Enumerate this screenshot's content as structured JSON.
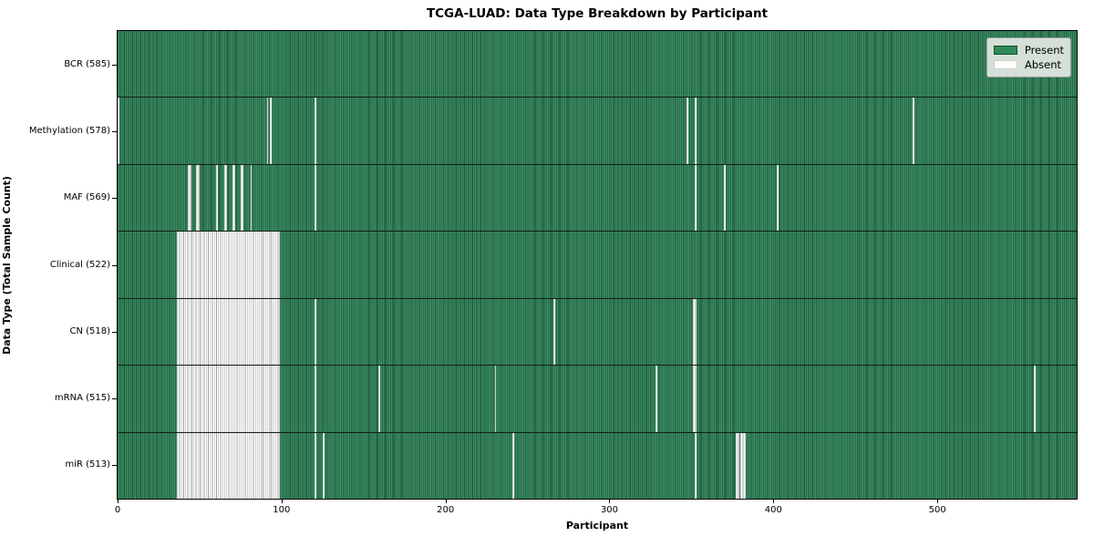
{
  "colors": {
    "present_mid": "#2e8157",
    "present_dark": "#1d5437",
    "present_light": "#4c9a72",
    "present_swatch": "#2e8b57",
    "absent_fill": "#ffffff",
    "absent_line": "#a0a0a0"
  },
  "chart_data": {
    "type": "heatmap",
    "title": "TCGA-LUAD: Data Type Breakdown by Participant",
    "xlabel": "Participant",
    "ylabel": "Data Type (Total Sample Count)",
    "x_range": [
      0,
      585
    ],
    "x_ticks": [
      "0",
      "100",
      "200",
      "300",
      "400",
      "500"
    ],
    "x_tick_values": [
      0,
      100,
      200,
      300,
      400,
      500
    ],
    "grid": false,
    "legend_position": "upper right",
    "legend": [
      {
        "label": "Present",
        "color": "#2e8b57"
      },
      {
        "label": "Absent",
        "color": "#ffffff"
      }
    ],
    "rows": [
      {
        "label": "BCR (585)",
        "data_type": "BCR",
        "total_samples": 585,
        "absent_ranges": []
      },
      {
        "label": "Methylation (578)",
        "data_type": "Methylation",
        "total_samples": 578,
        "absent_ranges": [
          [
            0,
            0
          ],
          [
            91,
            91
          ],
          [
            93,
            93
          ],
          [
            120,
            120
          ],
          [
            347,
            347
          ],
          [
            352,
            352
          ],
          [
            485,
            485
          ]
        ]
      },
      {
        "label": "MAF (569)",
        "data_type": "MAF",
        "total_samples": 569,
        "absent_ranges": [
          [
            43,
            44
          ],
          [
            48,
            49
          ],
          [
            60,
            60
          ],
          [
            65,
            66
          ],
          [
            70,
            71
          ],
          [
            75,
            76
          ],
          [
            81,
            81
          ],
          [
            120,
            120
          ],
          [
            352,
            352
          ],
          [
            370,
            370
          ],
          [
            402,
            402
          ]
        ]
      },
      {
        "label": "Clinical (522)",
        "data_type": "Clinical",
        "total_samples": 522,
        "absent_ranges": [
          [
            36,
            98
          ]
        ]
      },
      {
        "label": "CN (518)",
        "data_type": "CN",
        "total_samples": 518,
        "absent_ranges": [
          [
            36,
            98
          ],
          [
            120,
            120
          ],
          [
            266,
            266
          ],
          [
            351,
            352
          ]
        ]
      },
      {
        "label": "mRNA (515)",
        "data_type": "mRNA",
        "total_samples": 515,
        "absent_ranges": [
          [
            36,
            98
          ],
          [
            120,
            120
          ],
          [
            159,
            159
          ],
          [
            230,
            230
          ],
          [
            328,
            328
          ],
          [
            351,
            352
          ],
          [
            559,
            559
          ]
        ]
      },
      {
        "label": "miR (513)",
        "data_type": "miR",
        "total_samples": 513,
        "absent_ranges": [
          [
            36,
            98
          ],
          [
            120,
            120
          ],
          [
            125,
            125
          ],
          [
            241,
            241
          ],
          [
            352,
            352
          ],
          [
            377,
            378
          ],
          [
            380,
            382
          ]
        ]
      }
    ]
  }
}
